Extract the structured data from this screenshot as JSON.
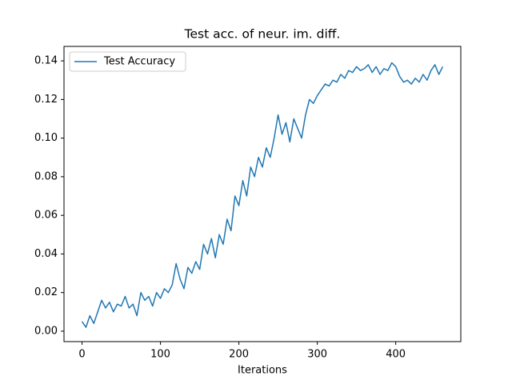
{
  "chart_data": {
    "type": "line",
    "title": "Test acc. of neur. im. diff.",
    "xlabel": "Iterations",
    "x": [
      0,
      5,
      10,
      15,
      20,
      25,
      30,
      35,
      40,
      45,
      50,
      55,
      60,
      65,
      70,
      75,
      80,
      85,
      90,
      95,
      100,
      105,
      110,
      115,
      120,
      125,
      130,
      135,
      140,
      145,
      150,
      155,
      160,
      165,
      170,
      175,
      180,
      185,
      190,
      195,
      200,
      205,
      210,
      215,
      220,
      225,
      230,
      235,
      240,
      245,
      250,
      255,
      260,
      265,
      270,
      275,
      280,
      285,
      290,
      295,
      300,
      305,
      310,
      315,
      320,
      325,
      330,
      335,
      340,
      345,
      350,
      355,
      360,
      365,
      370,
      375,
      380,
      385,
      390,
      395,
      400,
      405,
      410,
      415,
      420,
      425,
      430,
      435,
      440,
      445,
      450,
      455,
      460
    ],
    "series": [
      {
        "name": "Test Accuracy",
        "color": "#1f77b4",
        "values": [
          0.005,
          0.002,
          0.008,
          0.004,
          0.01,
          0.016,
          0.012,
          0.015,
          0.01,
          0.014,
          0.013,
          0.018,
          0.012,
          0.014,
          0.008,
          0.02,
          0.016,
          0.018,
          0.013,
          0.02,
          0.017,
          0.022,
          0.02,
          0.024,
          0.035,
          0.027,
          0.022,
          0.033,
          0.03,
          0.036,
          0.032,
          0.045,
          0.04,
          0.048,
          0.038,
          0.05,
          0.045,
          0.058,
          0.052,
          0.07,
          0.065,
          0.078,
          0.07,
          0.085,
          0.08,
          0.09,
          0.085,
          0.095,
          0.09,
          0.1,
          0.112,
          0.102,
          0.108,
          0.098,
          0.11,
          0.105,
          0.1,
          0.112,
          0.12,
          0.118,
          0.122,
          0.125,
          0.128,
          0.127,
          0.13,
          0.129,
          0.133,
          0.131,
          0.135,
          0.134,
          0.137,
          0.135,
          0.136,
          0.138,
          0.134,
          0.137,
          0.133,
          0.136,
          0.135,
          0.139,
          0.137,
          0.132,
          0.129,
          0.13,
          0.128,
          0.131,
          0.129,
          0.133,
          0.13,
          0.135,
          0.138,
          0.133,
          0.137
        ]
      }
    ],
    "xlim": [
      -23,
      483
    ],
    "ylim": [
      -0.0054,
      0.1475
    ],
    "xticks": [
      0,
      100,
      200,
      300,
      400
    ],
    "yticks": [
      {
        "value": 0,
        "label": "0.00"
      },
      {
        "value": 0.02,
        "label": "0.02"
      },
      {
        "value": 0.04,
        "label": "0.04"
      },
      {
        "value": 0.06,
        "label": "0.06"
      },
      {
        "value": 0.08,
        "label": "0.08"
      },
      {
        "value": 0.1,
        "label": "0.10"
      },
      {
        "value": 0.12,
        "label": "0.12"
      },
      {
        "value": 0.14,
        "label": "0.14"
      }
    ],
    "legend": "upper left"
  }
}
